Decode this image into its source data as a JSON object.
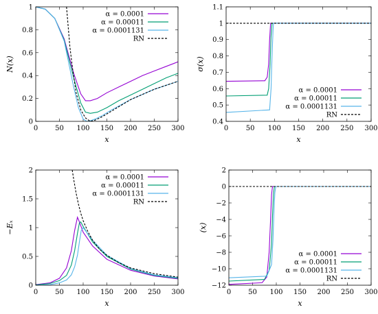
{
  "colors": {
    "s0": "#9400d3",
    "s1": "#009e73",
    "s2": "#56b4e9",
    "rn": "#000000"
  },
  "chart_data": [
    {
      "id": "p1",
      "type": "line",
      "xlabel": "x",
      "ylabel": "N(x)",
      "xlim": [
        0,
        300
      ],
      "ylim": [
        0,
        1
      ],
      "xticks": [
        "0",
        "50",
        "100",
        "150",
        "200",
        "250",
        "300"
      ],
      "yticks": [
        "0",
        "0.2",
        "0.4",
        "0.6",
        "0.8",
        "1"
      ],
      "legend_position": "top-right",
      "series": [
        {
          "name": "α = 0.0001",
          "x": [
            0,
            20,
            40,
            60,
            80,
            95,
            105,
            115,
            130,
            150,
            175,
            200,
            225,
            250,
            275,
            300
          ],
          "y": [
            1,
            0.98,
            0.9,
            0.72,
            0.42,
            0.24,
            0.18,
            0.18,
            0.2,
            0.25,
            0.3,
            0.35,
            0.4,
            0.44,
            0.48,
            0.52
          ]
        },
        {
          "name": "α = 0.00011",
          "x": [
            0,
            20,
            40,
            60,
            80,
            95,
            105,
            115,
            130,
            150,
            175,
            200,
            225,
            250,
            275,
            300
          ],
          "y": [
            1,
            0.98,
            0.9,
            0.71,
            0.38,
            0.16,
            0.08,
            0.07,
            0.08,
            0.12,
            0.18,
            0.23,
            0.28,
            0.33,
            0.38,
            0.42
          ]
        },
        {
          "name": "α = 0.0001131",
          "x": [
            0,
            20,
            40,
            60,
            80,
            90,
            100,
            108,
            115,
            125,
            140,
            160,
            200,
            250,
            300
          ],
          "y": [
            1,
            0.98,
            0.9,
            0.7,
            0.3,
            0.12,
            0.02,
            0,
            0.005,
            0.02,
            0.05,
            0.1,
            0.19,
            0.28,
            0.35
          ]
        },
        {
          "name": "RN",
          "dashed": true,
          "x": [
            65,
            68,
            72,
            78,
            85,
            95,
            105,
            115,
            125,
            140,
            160,
            200,
            250,
            300
          ],
          "y": [
            1,
            0.85,
            0.65,
            0.45,
            0.25,
            0.1,
            0.03,
            0,
            0.01,
            0.04,
            0.09,
            0.19,
            0.28,
            0.35
          ]
        }
      ]
    },
    {
      "id": "p2",
      "type": "line",
      "xlabel": "x",
      "ylabel": "σ(x)",
      "xlim": [
        0,
        300
      ],
      "ylim": [
        0.4,
        1.1
      ],
      "xticks": [
        "0",
        "50",
        "100",
        "150",
        "200",
        "250",
        "300"
      ],
      "yticks": [
        "0.4",
        "0.5",
        "0.6",
        "0.7",
        "0.8",
        "0.9",
        "1",
        "1.1"
      ],
      "legend_position": "bottom-right",
      "series": [
        {
          "name": "α = 0.0001",
          "x": [
            0,
            80,
            85,
            88,
            90,
            92,
            300
          ],
          "y": [
            0.645,
            0.648,
            0.67,
            0.75,
            0.9,
            1,
            1
          ]
        },
        {
          "name": "α = 0.00011",
          "x": [
            0,
            85,
            88,
            91,
            93,
            95,
            300
          ],
          "y": [
            0.555,
            0.56,
            0.6,
            0.75,
            0.92,
            1,
            1
          ]
        },
        {
          "name": "α = 0.0001131",
          "x": [
            0,
            90,
            93,
            95,
            97,
            98,
            300
          ],
          "y": [
            0.455,
            0.47,
            0.6,
            0.8,
            0.95,
            1,
            1
          ]
        },
        {
          "name": "RN",
          "dashed": true,
          "x": [
            0,
            300
          ],
          "y": [
            1,
            1
          ]
        }
      ]
    },
    {
      "id": "p3",
      "type": "line",
      "xlabel": "x",
      "ylabel": "−Eₓ",
      "xlim": [
        0,
        300
      ],
      "ylim": [
        0,
        2
      ],
      "xticks": [
        "0",
        "50",
        "100",
        "150",
        "200",
        "250",
        "300"
      ],
      "yticks": [
        "0",
        "0.5",
        "1",
        "1.5",
        "2"
      ],
      "legend_position": "top-right",
      "series": [
        {
          "name": "α = 0.0001",
          "x": [
            0,
            30,
            50,
            65,
            75,
            82,
            88,
            92,
            100,
            120,
            150,
            200,
            250,
            300
          ],
          "y": [
            0.01,
            0.04,
            0.12,
            0.3,
            0.6,
            0.95,
            1.18,
            1.1,
            0.92,
            0.68,
            0.45,
            0.26,
            0.16,
            0.11
          ]
        },
        {
          "name": "α = 0.00011",
          "x": [
            0,
            30,
            50,
            65,
            75,
            82,
            88,
            92,
            95,
            100,
            120,
            150,
            200,
            250,
            300
          ],
          "y": [
            0.005,
            0.03,
            0.08,
            0.17,
            0.35,
            0.6,
            0.9,
            1.08,
            1.1,
            1.02,
            0.75,
            0.5,
            0.28,
            0.17,
            0.12
          ]
        },
        {
          "name": "α = 0.0001131",
          "x": [
            0,
            30,
            50,
            65,
            75,
            82,
            88,
            92,
            96,
            100,
            120,
            150,
            200,
            250,
            300
          ],
          "y": [
            0,
            0.01,
            0.04,
            0.09,
            0.18,
            0.32,
            0.52,
            0.75,
            0.95,
            1.0,
            0.78,
            0.52,
            0.29,
            0.18,
            0.13
          ]
        },
        {
          "name": "RN",
          "dashed": true,
          "x": [
            77,
            80,
            85,
            90,
            95,
            100,
            110,
            120,
            135,
            150,
            175,
            200,
            250,
            300
          ],
          "y": [
            2,
            1.84,
            1.6,
            1.41,
            1.25,
            1.12,
            0.93,
            0.78,
            0.62,
            0.52,
            0.39,
            0.3,
            0.2,
            0.14
          ]
        }
      ]
    },
    {
      "id": "p4",
      "type": "line",
      "xlabel": "x",
      "ylabel": "(x)",
      "xlim": [
        0,
        300
      ],
      "ylim": [
        -12,
        2
      ],
      "xticks": [
        "0",
        "50",
        "100",
        "150",
        "200",
        "250",
        "300"
      ],
      "yticks": [
        "−12",
        "−10",
        "−8",
        "−6",
        "−4",
        "−2",
        "0",
        "2"
      ],
      "legend_position": "bottom-right",
      "series": [
        {
          "name": "α = 0.0001",
          "x": [
            0,
            70,
            80,
            85,
            88,
            90,
            92,
            300
          ],
          "y": [
            -11.9,
            -11.7,
            -11,
            -8,
            -4,
            -1,
            0,
            0
          ]
        },
        {
          "name": "α = 0.00011",
          "x": [
            0,
            75,
            85,
            90,
            92,
            94,
            96,
            300
          ],
          "y": [
            -11.5,
            -11.3,
            -10.2,
            -7,
            -3.5,
            -1,
            0,
            0
          ]
        },
        {
          "name": "α = 0.0001131",
          "x": [
            0,
            80,
            90,
            93,
            95,
            97,
            99,
            300
          ],
          "y": [
            -11.1,
            -10.9,
            -9.5,
            -6.5,
            -3,
            -0.8,
            0,
            0
          ]
        },
        {
          "name": "RN",
          "dashed": true,
          "x": [
            0,
            300
          ],
          "y": [
            0,
            0
          ]
        }
      ]
    }
  ]
}
